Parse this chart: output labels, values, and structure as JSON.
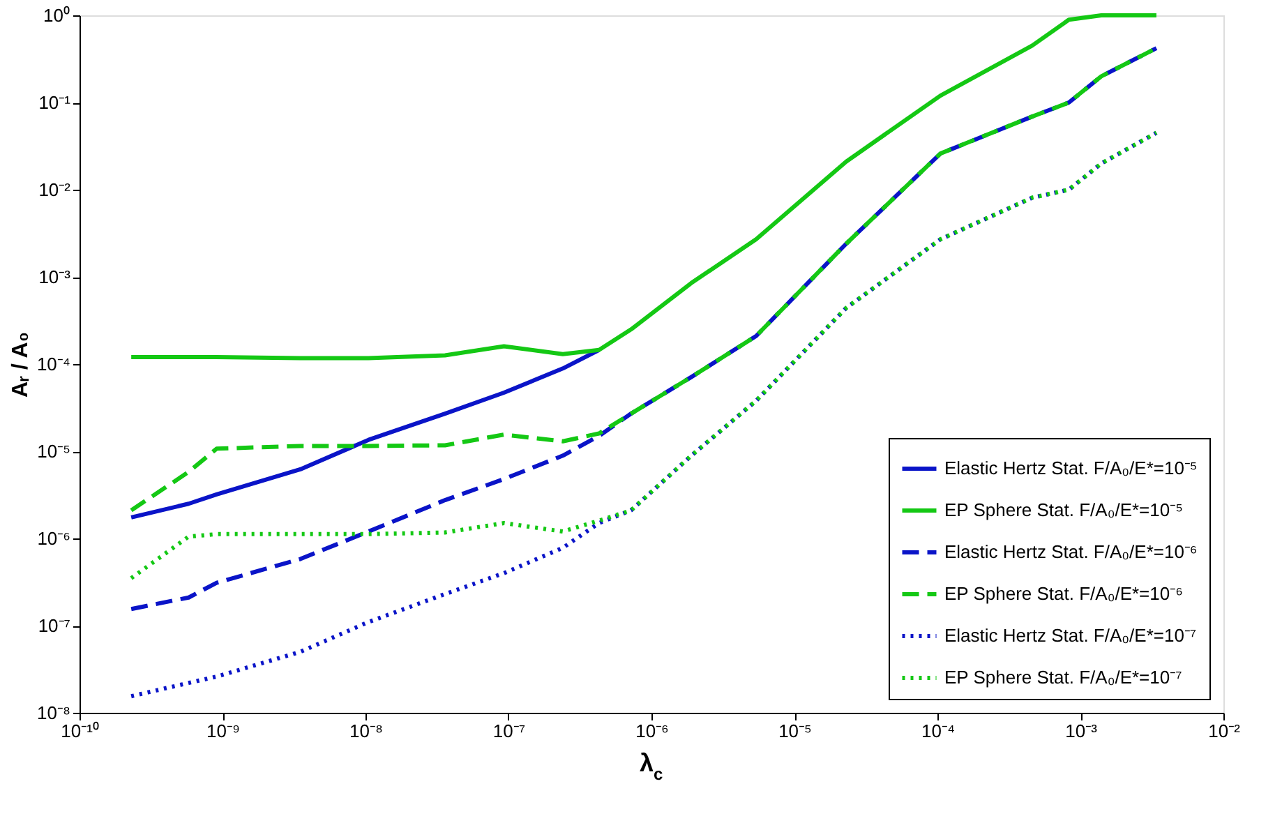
{
  "chart_data": {
    "type": "line",
    "xlabel": "λ$_{c}$",
    "ylabel": "Aᵣ / A₀",
    "log": "xy",
    "grid": false,
    "legend": "bottom right",
    "marker": "none",
    "x": [
      2.3e-10,
      5.8e-10,
      9.1e-10,
      3.5e-09,
      1.05e-08,
      3.6e-08,
      9.3e-08,
      2.4e-07,
      4.3e-07,
      7.2e-07,
      1.9e-06,
      5.4e-06,
      2.3e-05,
      0.000105,
      0.00046,
      0.00083,
      0.0014,
      0.0034
    ],
    "xlim": [
      1e-10,
      0.01
    ],
    "xticks": [
      {
        "value": 1e-10,
        "label": "10⁻¹⁰"
      },
      {
        "value": 1e-09,
        "label": "10⁻⁹"
      },
      {
        "value": 1e-08,
        "label": "10⁻⁸"
      },
      {
        "value": 1e-07,
        "label": "10⁻⁷"
      },
      {
        "value": 1e-06,
        "label": "10⁻⁶"
      },
      {
        "value": 1e-05,
        "label": "10⁻⁵"
      },
      {
        "value": 0.0001,
        "label": "10⁻⁴"
      },
      {
        "value": 0.001,
        "label": "10⁻³"
      },
      {
        "value": 0.01,
        "label": "10⁻²"
      }
    ],
    "ylim": [
      1e-08,
      1
    ],
    "yticks": [
      {
        "value": 1e-08,
        "label": "10⁻⁸"
      },
      {
        "value": 1e-07,
        "label": "10⁻⁷"
      },
      {
        "value": 1e-06,
        "label": "10⁻⁶"
      },
      {
        "value": 1e-05,
        "label": "10⁻⁵"
      },
      {
        "value": 0.0001,
        "label": "10⁻⁴"
      },
      {
        "value": 0.001,
        "label": "10⁻³"
      },
      {
        "value": 0.01,
        "label": "10⁻²"
      },
      {
        "value": 0.1,
        "label": "10⁻¹"
      },
      {
        "value": 1,
        "label": "10⁰"
      }
    ],
    "series": [
      {
        "name": "Elastic Hertz Stat. F/A₀/E*=10⁻⁵",
        "color": "#0a14c8",
        "line_style": "solid",
        "values": [
          1.74e-06,
          2.5e-06,
          3.2e-06,
          6.2e-06,
          1.35e-05,
          2.7e-05,
          4.7e-05,
          8.9e-05,
          0.000145,
          null,
          null,
          null,
          null,
          null,
          null,
          null,
          null,
          null
        ]
      },
      {
        "name": "EP Sphere Stat. F/A₀/E*=10⁻⁵",
        "color": "#14c814",
        "line_style": "solid",
        "values": [
          0.00012,
          0.00012,
          0.00012,
          0.000117,
          0.000117,
          0.000126,
          0.00016,
          0.00013,
          0.000145,
          0.00025,
          0.00085,
          0.0027,
          0.021,
          0.12,
          0.45,
          0.89,
          1,
          1
        ]
      },
      {
        "name": "Elastic Hertz Stat. F/A₀/E*=10⁻⁶",
        "color": "#0a14c8",
        "line_style": "dashed",
        "values": [
          1.55e-07,
          2.1e-07,
          3.1e-07,
          5.8e-07,
          1.2e-06,
          2.75e-06,
          4.8e-06,
          8.9e-06,
          1.5e-05,
          2.7e-05,
          7.1e-05,
          0.00021,
          0.0024,
          0.026,
          0.069,
          0.1,
          0.2,
          0.42
        ]
      },
      {
        "name": "EP Sphere Stat. F/A₀/E*=10⁻⁶",
        "color": "#14c814",
        "line_style": "dashed",
        "values": [
          2.1e-06,
          5.8e-06,
          1.07e-05,
          1.15e-05,
          1.15e-05,
          1.17e-05,
          1.55e-05,
          1.3e-05,
          1.6e-05,
          2.7e-05,
          7.1e-05,
          0.00021,
          0.0024,
          0.026,
          0.069,
          0.1,
          0.2,
          0.42
        ]
      },
      {
        "name": "Elastic Hertz Stat. F/A₀/E*=10⁻⁷",
        "color": "#0a14c8",
        "line_style": "dotted",
        "values": [
          1.55e-08,
          2.2e-08,
          2.6e-08,
          5e-08,
          1.1e-07,
          2.3e-07,
          4e-07,
          7.8e-07,
          1.5e-06,
          2.1e-06,
          8.9e-06,
          3.8e-05,
          0.00044,
          0.0027,
          0.0081,
          0.01,
          0.02,
          0.045
        ]
      },
      {
        "name": "EP Sphere Stat. F/A₀/E*=10⁻⁷",
        "color": "#14c814",
        "line_style": "dotted",
        "values": [
          3.5e-07,
          1.05e-06,
          1.12e-06,
          1.12e-06,
          1.12e-06,
          1.17e-06,
          1.5e-06,
          1.2e-06,
          1.6e-06,
          2.1e-06,
          8.9e-06,
          3.8e-05,
          0.00044,
          0.0027,
          0.0081,
          0.01,
          0.02,
          0.045
        ]
      }
    ]
  }
}
